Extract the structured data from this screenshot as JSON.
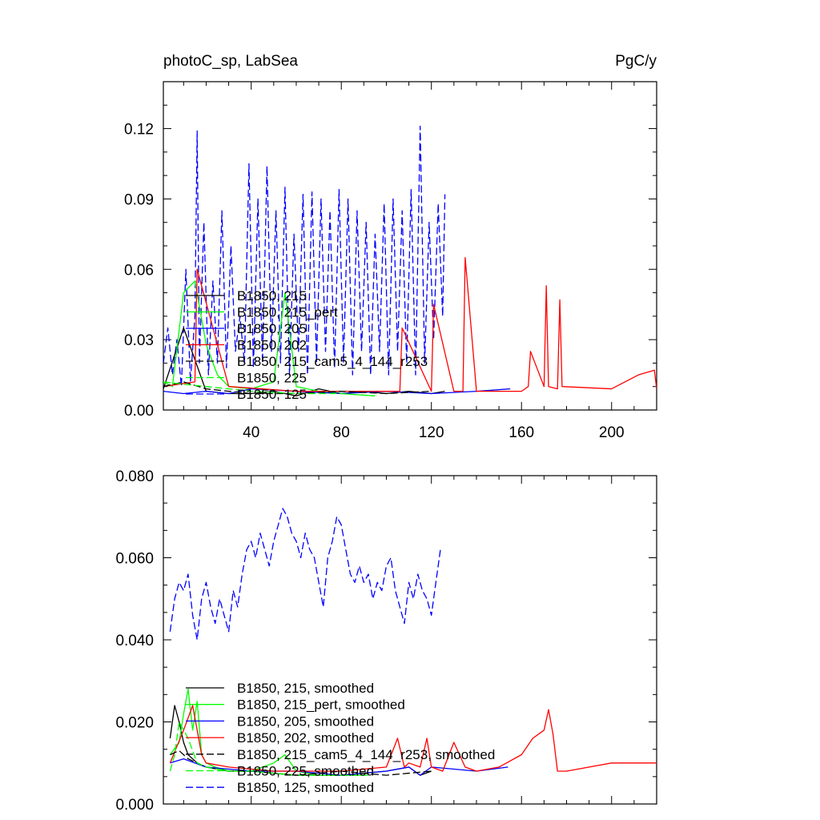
{
  "chart_data": [
    {
      "type": "line",
      "title_left": "photoC_sp, LabSea",
      "title_right": "PgC/y",
      "xlim": [
        1,
        220
      ],
      "ylim": [
        0,
        0.14
      ],
      "xticks": [
        40,
        80,
        120,
        160,
        200
      ],
      "yticks": [
        0.0,
        0.03,
        0.06,
        0.09,
        0.12
      ],
      "ytick_labels": [
        "0.00",
        "0.03",
        "0.06",
        "0.09",
        "0.12"
      ],
      "grid": false,
      "legend_position": "bottom-left",
      "series": [
        {
          "name": "B1850, 215",
          "color": "#000000",
          "dash": "solid",
          "x": [
            1,
            10,
            20,
            30,
            40,
            50,
            60,
            70,
            80,
            90,
            100,
            110,
            120,
            126
          ],
          "y": [
            0.009,
            0.035,
            0.008,
            0.007,
            0.007,
            0.008,
            0.006,
            0.009,
            0.007,
            0.008,
            0.007,
            0.008,
            0.007,
            0.008
          ]
        },
        {
          "name": "B1850, 215_pert",
          "color": "#00ff00",
          "dash": "solid",
          "x": [
            1,
            5,
            10,
            15,
            20,
            25,
            30,
            40,
            50,
            55,
            60,
            70,
            80,
            95
          ],
          "y": [
            0.012,
            0.01,
            0.05,
            0.055,
            0.028,
            0.015,
            0.01,
            0.009,
            0.012,
            0.05,
            0.01,
            0.008,
            0.007,
            0.006
          ]
        },
        {
          "name": "B1850, 205",
          "color": "#0000ff",
          "dash": "solid",
          "x": [
            1,
            10,
            20,
            30,
            40,
            60,
            80,
            100,
            120,
            140,
            155
          ],
          "y": [
            0.008,
            0.007,
            0.008,
            0.007,
            0.009,
            0.008,
            0.007,
            0.008,
            0.007,
            0.008,
            0.009
          ]
        },
        {
          "name": "B1850, 202",
          "color": "#ff0000",
          "dash": "solid",
          "x": [
            1,
            15,
            16,
            30,
            60,
            90,
            106,
            107,
            120,
            121,
            130,
            134,
            135,
            140,
            160,
            163,
            164,
            170,
            171,
            172,
            176,
            177,
            178,
            200,
            212,
            219,
            220
          ],
          "y": [
            0.01,
            0.012,
            0.06,
            0.01,
            0.008,
            0.008,
            0.008,
            0.035,
            0.008,
            0.045,
            0.008,
            0.008,
            0.065,
            0.008,
            0.008,
            0.01,
            0.025,
            0.01,
            0.053,
            0.01,
            0.009,
            0.047,
            0.01,
            0.009,
            0.015,
            0.017,
            0.009
          ]
        },
        {
          "name": "B1850, 215_cam5_4_144_r253",
          "color": "#000000",
          "dash": "dashed",
          "x": [
            1,
            10,
            20,
            30,
            40,
            60,
            80,
            100,
            120
          ],
          "y": [
            0.01,
            0.012,
            0.009,
            0.008,
            0.007,
            0.007,
            0.008,
            0.007,
            0.008
          ]
        },
        {
          "name": "B1850, 225",
          "color": "#00ff00",
          "dash": "dashed",
          "x": [
            1,
            10,
            20,
            30,
            40,
            60,
            80,
            95
          ],
          "y": [
            0.012,
            0.011,
            0.01,
            0.009,
            0.008,
            0.007,
            0.007,
            0.006
          ]
        },
        {
          "name": "B1850, 125",
          "color": "#0000ff",
          "dash": "dashed",
          "x": [
            1,
            3,
            5,
            7,
            9,
            11,
            13,
            15,
            16,
            17,
            19,
            21,
            23,
            25,
            27,
            29,
            31,
            33,
            35,
            37,
            39,
            41,
            43,
            45,
            47,
            49,
            51,
            53,
            55,
            57,
            59,
            61,
            63,
            65,
            67,
            69,
            71,
            73,
            75,
            77,
            79,
            81,
            83,
            85,
            87,
            89,
            91,
            93,
            95,
            97,
            99,
            101,
            103,
            105,
            107,
            109,
            111,
            113,
            115,
            117,
            119,
            121,
            123,
            125,
            126
          ],
          "y": [
            0.02,
            0.035,
            0.015,
            0.03,
            0.01,
            0.06,
            0.012,
            0.04,
            0.119,
            0.02,
            0.08,
            0.015,
            0.055,
            0.02,
            0.085,
            0.018,
            0.07,
            0.025,
            0.04,
            0.02,
            0.105,
            0.018,
            0.09,
            0.02,
            0.104,
            0.025,
            0.085,
            0.02,
            0.095,
            0.015,
            0.075,
            0.025,
            0.092,
            0.015,
            0.093,
            0.02,
            0.09,
            0.025,
            0.085,
            0.018,
            0.094,
            0.02,
            0.09,
            0.015,
            0.085,
            0.025,
            0.08,
            0.015,
            0.075,
            0.025,
            0.088,
            0.015,
            0.09,
            0.025,
            0.085,
            0.02,
            0.094,
            0.015,
            0.121,
            0.02,
            0.08,
            0.03,
            0.088,
            0.04,
            0.092
          ]
        }
      ]
    },
    {
      "type": "line",
      "title_left": "",
      "title_right": "",
      "xlim": [
        1,
        220
      ],
      "ylim": [
        0,
        0.08
      ],
      "xticks": [
        40,
        80,
        120,
        160,
        200
      ],
      "yticks": [
        0.0,
        0.02,
        0.04,
        0.06,
        0.08
      ],
      "ytick_labels": [
        "0.000",
        "0.020",
        "0.040",
        "0.060",
        "0.080"
      ],
      "grid": false,
      "legend_position": "bottom-left",
      "series": [
        {
          "name": "B1850, 215, smoothed",
          "color": "#000000",
          "dash": "solid",
          "x": [
            4,
            6,
            8,
            10,
            12,
            16,
            20,
            30,
            40,
            60,
            80,
            100,
            110,
            115,
            120
          ],
          "y": [
            0.016,
            0.024,
            0.02,
            0.015,
            0.012,
            0.01,
            0.009,
            0.008,
            0.008,
            0.007,
            0.007,
            0.008,
            0.009,
            0.007,
            0.008
          ]
        },
        {
          "name": "B1850, 215_pert, smoothed",
          "color": "#00ff00",
          "dash": "solid",
          "x": [
            4,
            8,
            10,
            12,
            14,
            16,
            18,
            20,
            24,
            30,
            40,
            50,
            55,
            60,
            70,
            90
          ],
          "y": [
            0.012,
            0.015,
            0.022,
            0.028,
            0.018,
            0.025,
            0.012,
            0.01,
            0.009,
            0.008,
            0.008,
            0.01,
            0.012,
            0.008,
            0.007,
            0.007
          ]
        },
        {
          "name": "B1850, 205, smoothed",
          "color": "#0000ff",
          "dash": "solid",
          "x": [
            4,
            10,
            20,
            40,
            60,
            80,
            100,
            110,
            115,
            120,
            140,
            154
          ],
          "y": [
            0.01,
            0.011,
            0.009,
            0.008,
            0.008,
            0.007,
            0.008,
            0.009,
            0.007,
            0.009,
            0.008,
            0.009
          ]
        },
        {
          "name": "B1850, 202, smoothed",
          "color": "#ff0000",
          "dash": "solid",
          "x": [
            4,
            10,
            14,
            16,
            18,
            20,
            30,
            50,
            80,
            100,
            105,
            108,
            110,
            115,
            118,
            120,
            125,
            130,
            135,
            140,
            150,
            160,
            165,
            170,
            172,
            174,
            176,
            180,
            200,
            220
          ],
          "y": [
            0.01,
            0.018,
            0.024,
            0.018,
            0.012,
            0.01,
            0.009,
            0.008,
            0.008,
            0.009,
            0.016,
            0.009,
            0.01,
            0.009,
            0.016,
            0.009,
            0.008,
            0.015,
            0.009,
            0.008,
            0.009,
            0.012,
            0.016,
            0.018,
            0.023,
            0.017,
            0.008,
            0.008,
            0.01,
            0.01
          ]
        },
        {
          "name": "B1850, 215_cam5_4_144_r253, smoothed",
          "color": "#000000",
          "dash": "dashed",
          "x": [
            4,
            8,
            12,
            16,
            20,
            30,
            40,
            60,
            80,
            100,
            120
          ],
          "y": [
            0.012,
            0.013,
            0.011,
            0.01,
            0.009,
            0.008,
            0.008,
            0.007,
            0.008,
            0.007,
            0.008
          ]
        },
        {
          "name": "B1850, 225, smoothed",
          "color": "#00ff00",
          "dash": "dashed",
          "x": [
            4,
            6,
            8,
            12,
            16,
            20,
            30,
            40,
            60,
            80,
            92
          ],
          "y": [
            0.008,
            0.012,
            0.02,
            0.016,
            0.01,
            0.009,
            0.008,
            0.008,
            0.007,
            0.007,
            0.007
          ]
        },
        {
          "name": "B1850, 125, smoothed",
          "color": "#0000ff",
          "dash": "dashed",
          "x": [
            4,
            6,
            8,
            10,
            12,
            14,
            16,
            18,
            20,
            22,
            24,
            26,
            28,
            30,
            32,
            34,
            36,
            38,
            40,
            42,
            44,
            46,
            48,
            50,
            52,
            54,
            56,
            58,
            60,
            62,
            64,
            66,
            68,
            70,
            72,
            74,
            76,
            78,
            80,
            82,
            84,
            86,
            88,
            90,
            92,
            94,
            96,
            98,
            100,
            102,
            104,
            106,
            108,
            110,
            112,
            114,
            116,
            118,
            120,
            122,
            124
          ],
          "y": [
            0.042,
            0.05,
            0.054,
            0.052,
            0.056,
            0.046,
            0.04,
            0.05,
            0.054,
            0.048,
            0.044,
            0.05,
            0.046,
            0.042,
            0.052,
            0.048,
            0.056,
            0.062,
            0.064,
            0.06,
            0.066,
            0.062,
            0.058,
            0.064,
            0.068,
            0.072,
            0.07,
            0.066,
            0.064,
            0.06,
            0.066,
            0.062,
            0.06,
            0.054,
            0.048,
            0.06,
            0.064,
            0.07,
            0.068,
            0.062,
            0.056,
            0.054,
            0.058,
            0.054,
            0.056,
            0.05,
            0.054,
            0.052,
            0.058,
            0.06,
            0.052,
            0.048,
            0.044,
            0.054,
            0.05,
            0.056,
            0.052,
            0.05,
            0.046,
            0.054,
            0.062
          ]
        }
      ]
    }
  ]
}
